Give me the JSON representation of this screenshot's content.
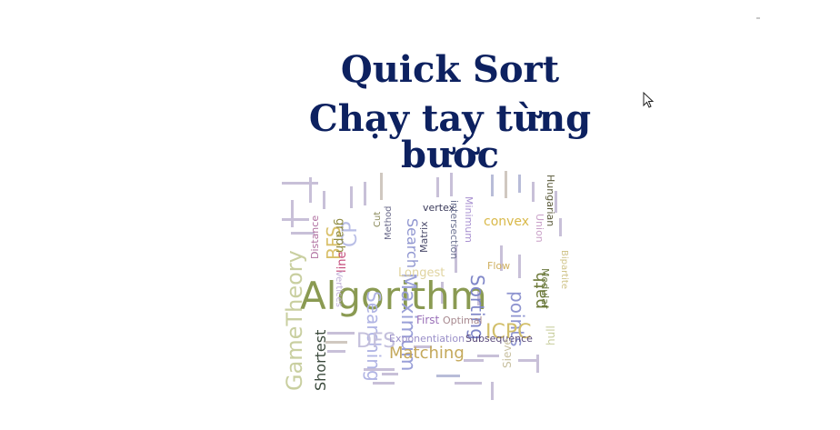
{
  "slide": {
    "title_line1": "Quick Sort",
    "title_line2": "Chạy tay từng bước"
  },
  "cursor_icon": "mouse-pointer-icon",
  "wordcloud": {
    "words": [
      {
        "text": "Algorithm",
        "color": "#8a9a52"
      },
      {
        "text": "GameTheory",
        "color": "#c9cfa0"
      },
      {
        "text": "Maximum",
        "color": "#9aa0d8"
      },
      {
        "text": "Searching",
        "color": "#b0b4e4"
      },
      {
        "text": "Sorting",
        "color": "#7f86c8"
      },
      {
        "text": "points",
        "color": "#8f95d0"
      },
      {
        "text": "Search",
        "color": "#8f95d0"
      },
      {
        "text": "Shortest",
        "color": "#3b4a3c"
      },
      {
        "text": "Matching",
        "color": "#c4a85a"
      },
      {
        "text": "ICPC",
        "color": "#d2bf6a"
      },
      {
        "text": "DFS",
        "color": "#c4c0dc"
      },
      {
        "text": "BFS",
        "color": "#d9c06a"
      },
      {
        "text": "CP",
        "color": "#b9bee6"
      },
      {
        "text": "convex",
        "color": "#d9b94a"
      },
      {
        "text": "Longest",
        "color": "#e0d4a0"
      },
      {
        "text": "Exponentiation",
        "color": "#9a8fc8"
      },
      {
        "text": "Subsequence",
        "color": "#5a4a7a"
      },
      {
        "text": "graph",
        "color": "#8e8a40"
      },
      {
        "text": "path",
        "color": "#6e7a3a"
      },
      {
        "text": "hull",
        "color": "#c9cfa0"
      },
      {
        "text": "line",
        "color": "#c44a7a"
      },
      {
        "text": "Distance",
        "color": "#b070a0"
      },
      {
        "text": "vertex",
        "color": "#3a3a5a"
      },
      {
        "text": "Minimum",
        "color": "#a890d0"
      },
      {
        "text": "intersection",
        "color": "#6a7090"
      },
      {
        "text": "Hungarian",
        "color": "#5a5a3a"
      },
      {
        "text": "Union",
        "color": "#c9a0c8"
      },
      {
        "text": "Modular",
        "color": "#6a7a40"
      },
      {
        "text": "Bipartite",
        "color": "#d0c48a"
      },
      {
        "text": "First",
        "color": "#9a70b8"
      },
      {
        "text": "Optimal",
        "color": "#a88a90"
      },
      {
        "text": "Sieve",
        "color": "#c8c0a0"
      },
      {
        "text": "Matrix",
        "color": "#4a4a6a"
      },
      {
        "text": "Method",
        "color": "#6a6a8a"
      },
      {
        "text": "Flow",
        "color": "#d0b060"
      },
      {
        "text": "Cut",
        "color": "#8a8a5a"
      },
      {
        "text": "Vertices",
        "color": "#c0b0d8"
      }
    ]
  }
}
